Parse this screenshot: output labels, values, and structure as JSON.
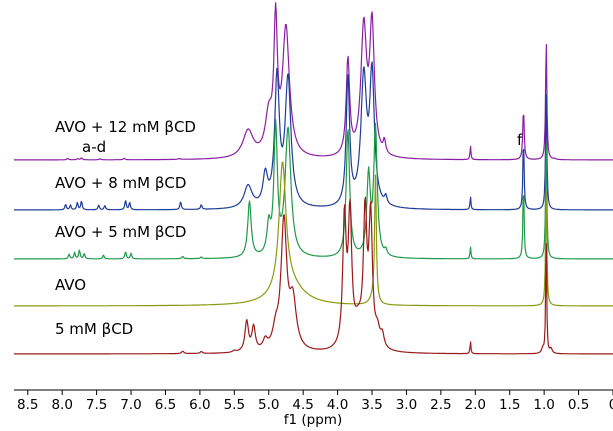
{
  "chart_data": {
    "type": "line",
    "title": "",
    "xlabel": "f1 (ppm)",
    "ylabel": "",
    "xlim": [
      8.7,
      0.0
    ],
    "x_reversed": true,
    "grid": false,
    "x_ticks": [
      "8.5",
      "8.0",
      "7.5",
      "7.0",
      "6.5",
      "6.0",
      "5.5",
      "5.0",
      "4.5",
      "4.0",
      "3.5",
      "3.0",
      "2.5",
      "2.0",
      "1.5",
      "1.0",
      "0.5",
      "0"
    ],
    "annotations": [
      {
        "text": "a-d",
        "x": 7.6
      },
      {
        "text": "f",
        "x": 1.3
      }
    ],
    "series": [
      {
        "name": "AVO + 12 mM βCD",
        "color": "#8a1fa3",
        "baseline_offset": 4,
        "peaks": [
          [
            7.92,
            0.09,
            0.015
          ],
          [
            7.78,
            0.07,
            0.015
          ],
          [
            7.72,
            0.12,
            0.015
          ],
          [
            7.45,
            0.06,
            0.015
          ],
          [
            7.1,
            0.09,
            0.015
          ],
          [
            6.3,
            0.05,
            0.02
          ],
          [
            5.3,
            1.7,
            0.09
          ],
          [
            5.0,
            2.4,
            0.06
          ],
          [
            4.9,
            8,
            0.03
          ],
          [
            4.75,
            8,
            0.06
          ],
          [
            3.85,
            6,
            0.03
          ],
          [
            3.62,
            8,
            0.05
          ],
          [
            3.5,
            8,
            0.04
          ],
          [
            3.32,
            0.8,
            0.02
          ],
          [
            2.07,
            0.85,
            0.008
          ],
          [
            1.3,
            3.2,
            0.012
          ],
          [
            0.97,
            8,
            0.01
          ],
          [
            0.85,
            0.05,
            0.02
          ]
        ]
      },
      {
        "name": "AVO + 8 mM βCD",
        "color": "#1f3c98",
        "baseline_offset": 3,
        "peaks": [
          [
            7.95,
            0.35,
            0.012
          ],
          [
            7.88,
            0.3,
            0.012
          ],
          [
            7.78,
            0.45,
            0.012
          ],
          [
            7.72,
            0.55,
            0.012
          ],
          [
            7.47,
            0.3,
            0.012
          ],
          [
            7.38,
            0.28,
            0.012
          ],
          [
            7.08,
            0.6,
            0.012
          ],
          [
            7.02,
            0.45,
            0.012
          ],
          [
            6.28,
            0.5,
            0.012
          ],
          [
            5.98,
            0.3,
            0.012
          ],
          [
            5.3,
            1.4,
            0.07
          ],
          [
            5.05,
            1.9,
            0.04
          ],
          [
            4.88,
            8,
            0.04
          ],
          [
            4.72,
            8,
            0.05
          ],
          [
            3.85,
            8,
            0.03
          ],
          [
            3.62,
            8,
            0.05
          ],
          [
            3.5,
            8,
            0.04
          ],
          [
            3.3,
            0.5,
            0.02
          ],
          [
            2.07,
            0.8,
            0.008
          ],
          [
            1.3,
            4.6,
            0.01
          ],
          [
            0.97,
            8,
            0.01
          ]
        ]
      },
      {
        "name": "AVO + 5 mM βCD",
        "color": "#1f9a4a",
        "baseline_offset": 2,
        "peaks": [
          [
            7.9,
            0.3,
            0.012
          ],
          [
            7.82,
            0.4,
            0.012
          ],
          [
            7.75,
            0.55,
            0.012
          ],
          [
            7.68,
            0.35,
            0.012
          ],
          [
            7.4,
            0.25,
            0.012
          ],
          [
            7.08,
            0.45,
            0.012
          ],
          [
            7.0,
            0.35,
            0.012
          ],
          [
            6.25,
            0.15,
            0.015
          ],
          [
            5.98,
            0.1,
            0.015
          ],
          [
            5.28,
            3.5,
            0.03
          ],
          [
            5.0,
            1.8,
            0.03
          ],
          [
            4.9,
            8,
            0.03
          ],
          [
            4.72,
            8,
            0.05
          ],
          [
            3.85,
            8,
            0.03
          ],
          [
            3.55,
            5,
            0.03
          ],
          [
            3.45,
            8,
            0.03
          ],
          [
            3.3,
            0.35,
            0.02
          ],
          [
            2.07,
            0.75,
            0.008
          ],
          [
            1.3,
            4.8,
            0.01
          ],
          [
            0.97,
            8,
            0.01
          ]
        ]
      },
      {
        "name": "AVO",
        "color": "#8a9a10",
        "baseline_offset": 1,
        "peaks": [
          [
            4.8,
            8,
            0.06
          ],
          [
            4.7,
            1.2,
            0.25
          ],
          [
            3.45,
            8,
            0.015
          ],
          [
            3.5,
            0.3,
            0.05
          ],
          [
            0.97,
            8,
            0.01
          ]
        ]
      },
      {
        "name": "5 mM βCD",
        "color": "#9a1a1a",
        "baseline_offset": 0,
        "peaks": [
          [
            6.25,
            0.15,
            0.02
          ],
          [
            5.98,
            0.12,
            0.02
          ],
          [
            5.5,
            0.1,
            0.03
          ],
          [
            5.32,
            1.9,
            0.03
          ],
          [
            5.22,
            1.5,
            0.03
          ],
          [
            5.05,
            0.6,
            0.04
          ],
          [
            4.9,
            1.1,
            0.05
          ],
          [
            4.78,
            8,
            0.05
          ],
          [
            4.65,
            3,
            0.06
          ],
          [
            3.9,
            8,
            0.03
          ],
          [
            3.82,
            8,
            0.03
          ],
          [
            3.7,
            1.5,
            0.08
          ],
          [
            3.6,
            8,
            0.03
          ],
          [
            3.52,
            8,
            0.03
          ],
          [
            3.42,
            1.0,
            0.04
          ],
          [
            3.35,
            0.8,
            0.03
          ],
          [
            2.07,
            0.75,
            0.008
          ],
          [
            1.02,
            0.3,
            0.02
          ],
          [
            0.97,
            8,
            0.008
          ],
          [
            0.9,
            0.3,
            0.02
          ]
        ]
      }
    ]
  }
}
